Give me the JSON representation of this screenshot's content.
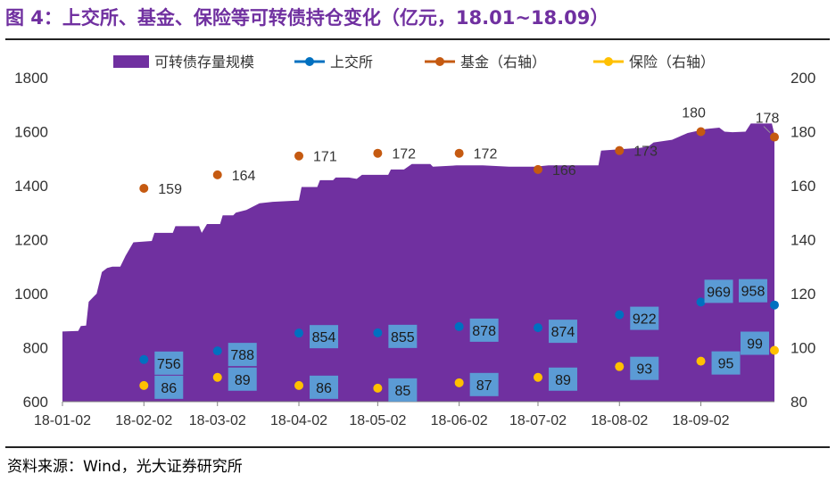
{
  "title": "图 4：上交所、基金、保险等可转债持仓变化（亿元，18.01~18.09）",
  "source": "资料来源：Wind，光大证券研究所",
  "colors": {
    "area": "#7030A0",
    "sse": "#0070C0",
    "fund": "#C55A11",
    "insurance": "#FFC000",
    "label_box": "#5B9BD5",
    "title": "#7030A0"
  },
  "chart_data": {
    "type": "area",
    "legend_position": "top",
    "grid": false,
    "legend": [
      {
        "name": "可转债存量规模",
        "kind": "area",
        "color": "#7030A0"
      },
      {
        "name": "上交所",
        "kind": "line-marker",
        "color": "#0070C0"
      },
      {
        "name": "基金（右轴）",
        "kind": "line-marker",
        "color": "#C55A11"
      },
      {
        "name": "保险（右轴）",
        "kind": "line-marker",
        "color": "#FFC000"
      }
    ],
    "y_left": {
      "min": 600,
      "max": 1800,
      "ticks": [
        600,
        800,
        1000,
        1200,
        1400,
        1600,
        1800
      ]
    },
    "y_right": {
      "min": 80,
      "max": 200,
      "ticks": [
        80,
        100,
        120,
        140,
        160,
        180,
        200
      ]
    },
    "x_ticks": [
      "18-01-02",
      "18-02-02",
      "18-03-02",
      "18-04-02",
      "18-05-02",
      "18-06-02",
      "18-07-02",
      "18-08-02",
      "18-09-02"
    ],
    "x_tick_days": [
      0,
      31,
      59,
      90,
      120,
      151,
      181,
      212,
      243
    ],
    "x_end_day": 271,
    "area_series": {
      "name": "可转债存量规模",
      "points": [
        [
          0,
          860
        ],
        [
          6,
          862
        ],
        [
          7,
          880
        ],
        [
          9,
          882
        ],
        [
          10,
          970
        ],
        [
          12,
          990
        ],
        [
          13,
          1000
        ],
        [
          15,
          1080
        ],
        [
          17,
          1095
        ],
        [
          19,
          1100
        ],
        [
          22,
          1100
        ],
        [
          24,
          1140
        ],
        [
          27,
          1190
        ],
        [
          34,
          1195
        ],
        [
          35,
          1225
        ],
        [
          42,
          1225
        ],
        [
          43,
          1250
        ],
        [
          52,
          1250
        ],
        [
          53,
          1225
        ],
        [
          55,
          1258
        ],
        [
          60,
          1258
        ],
        [
          61,
          1290
        ],
        [
          65,
          1290
        ],
        [
          66,
          1300
        ],
        [
          70,
          1310
        ],
        [
          72,
          1320
        ],
        [
          75,
          1335
        ],
        [
          80,
          1340
        ],
        [
          90,
          1345
        ],
        [
          91,
          1395
        ],
        [
          97,
          1395
        ],
        [
          98,
          1420
        ],
        [
          103,
          1420
        ],
        [
          104,
          1430
        ],
        [
          109,
          1430
        ],
        [
          112,
          1425
        ],
        [
          114,
          1440
        ],
        [
          124,
          1440
        ],
        [
          125,
          1460
        ],
        [
          130,
          1460
        ],
        [
          133,
          1480
        ],
        [
          140,
          1480
        ],
        [
          141,
          1470
        ],
        [
          150,
          1475
        ],
        [
          160,
          1475
        ],
        [
          170,
          1470
        ],
        [
          180,
          1470
        ],
        [
          185,
          1475
        ],
        [
          200,
          1475
        ],
        [
          204,
          1475
        ],
        [
          205,
          1530
        ],
        [
          212,
          1535
        ],
        [
          220,
          1540
        ],
        [
          223,
          1545
        ],
        [
          225,
          1560
        ],
        [
          232,
          1570
        ],
        [
          238,
          1595
        ],
        [
          245,
          1610
        ],
        [
          250,
          1615
        ],
        [
          252,
          1600
        ],
        [
          255,
          1598
        ],
        [
          260,
          1600
        ],
        [
          262,
          1630
        ],
        [
          270,
          1630
        ],
        [
          271,
          1590
        ]
      ]
    },
    "series": [
      {
        "name": "上交所",
        "axis": "left",
        "color": "#0070C0",
        "x": [
          0,
          31,
          59,
          90,
          120,
          151,
          181,
          212,
          243,
          271
        ],
        "values": [
          null,
          756,
          788,
          854,
          855,
          878,
          874,
          922,
          969,
          958
        ]
      },
      {
        "name": "基金（右轴）",
        "axis": "right",
        "color": "#C55A11",
        "x": [
          0,
          31,
          59,
          90,
          120,
          151,
          181,
          212,
          243,
          271
        ],
        "values": [
          null,
          159,
          164,
          171,
          172,
          172,
          166,
          173,
          180,
          178
        ]
      },
      {
        "name": "保险（右轴）",
        "axis": "right",
        "color": "#FFC000",
        "x": [
          0,
          31,
          59,
          90,
          120,
          151,
          181,
          212,
          243,
          271
        ],
        "values": [
          null,
          86,
          89,
          86,
          85,
          87,
          89,
          93,
          95,
          99
        ]
      }
    ]
  }
}
